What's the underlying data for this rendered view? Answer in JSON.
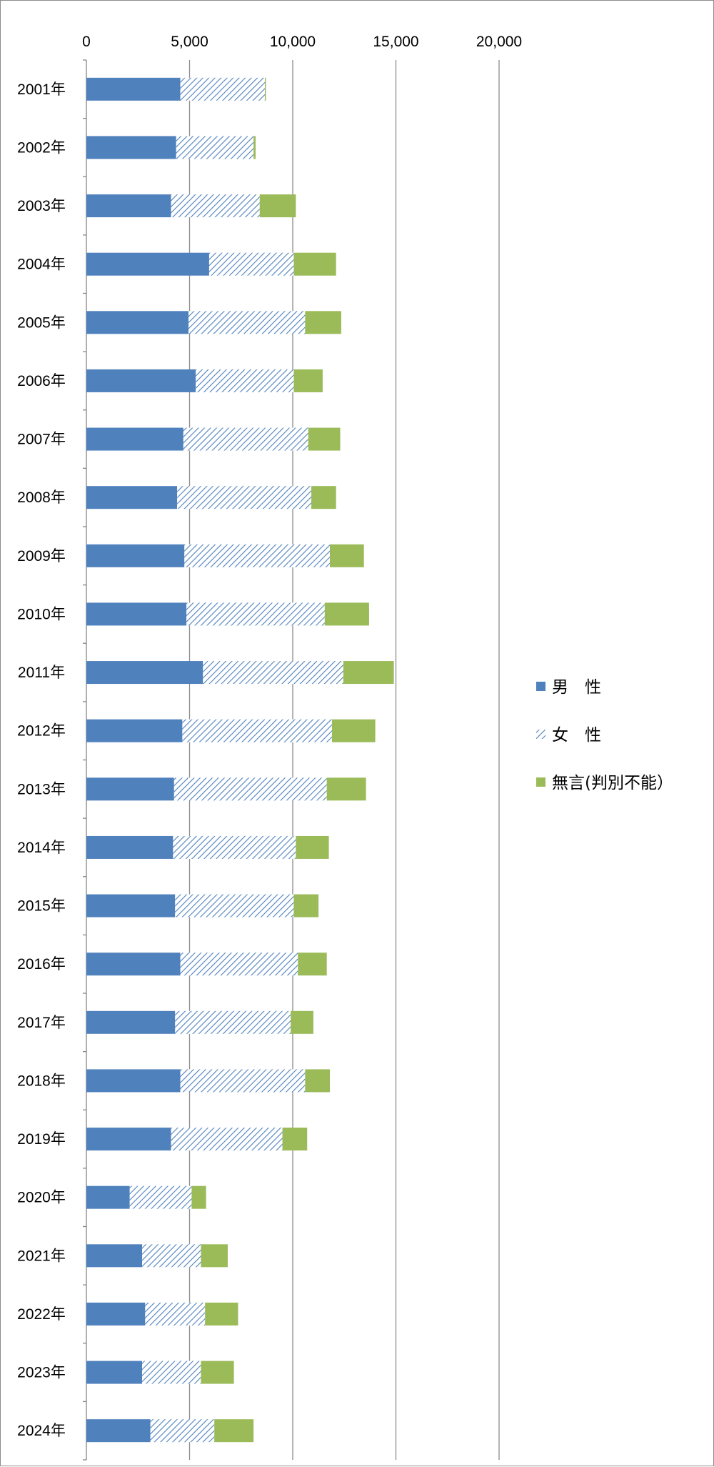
{
  "chart_data": {
    "type": "bar",
    "orientation": "horizontal",
    "stacked": true,
    "categories": [
      "2001年",
      "2002年",
      "2003年",
      "2004年",
      "2005年",
      "2006年",
      "2007年",
      "2008年",
      "2009年",
      "2010年",
      "2011年",
      "2012年",
      "2013年",
      "2014年",
      "2015年",
      "2016年",
      "2017年",
      "2018年",
      "2019年",
      "2020年",
      "2021年",
      "2022年",
      "2023年",
      "2024年"
    ],
    "series": [
      {
        "name": "男　性",
        "color": "#4f81bd",
        "pattern": "solid",
        "values": [
          4550,
          4350,
          4100,
          5950,
          4950,
          5300,
          4700,
          4400,
          4750,
          4850,
          5650,
          4650,
          4250,
          4200,
          4300,
          4550,
          4300,
          4550,
          4100,
          2100,
          2700,
          2850,
          2700,
          3100
        ]
      },
      {
        "name": "女　性",
        "color": "#4f81bd",
        "pattern": "diagonal-hatch",
        "values": [
          4100,
          3750,
          4300,
          4100,
          5650,
          4750,
          6050,
          6500,
          7050,
          6700,
          6800,
          7250,
          7400,
          5950,
          5750,
          5700,
          5600,
          6050,
          5400,
          3000,
          2850,
          2900,
          2850,
          3100
        ]
      },
      {
        "name": "無言(判別不能）",
        "color": "#9bbb59",
        "pattern": "solid",
        "values": [
          50,
          100,
          1750,
          2050,
          1750,
          1400,
          1550,
          1200,
          1650,
          2150,
          2450,
          2100,
          1900,
          1600,
          1200,
          1400,
          1100,
          1200,
          1200,
          700,
          1300,
          1600,
          1600,
          1900
        ]
      }
    ],
    "xlim": [
      0,
      20000
    ],
    "xticks": [
      "0",
      "5,000",
      "10,000",
      "15,000",
      "20,000"
    ],
    "xticks_values": [
      0,
      5000,
      10000,
      15000,
      20000
    ],
    "axis_position": "top",
    "grid": "vertical",
    "legend_position": "right",
    "title": "",
    "xlabel": "",
    "ylabel": ""
  }
}
